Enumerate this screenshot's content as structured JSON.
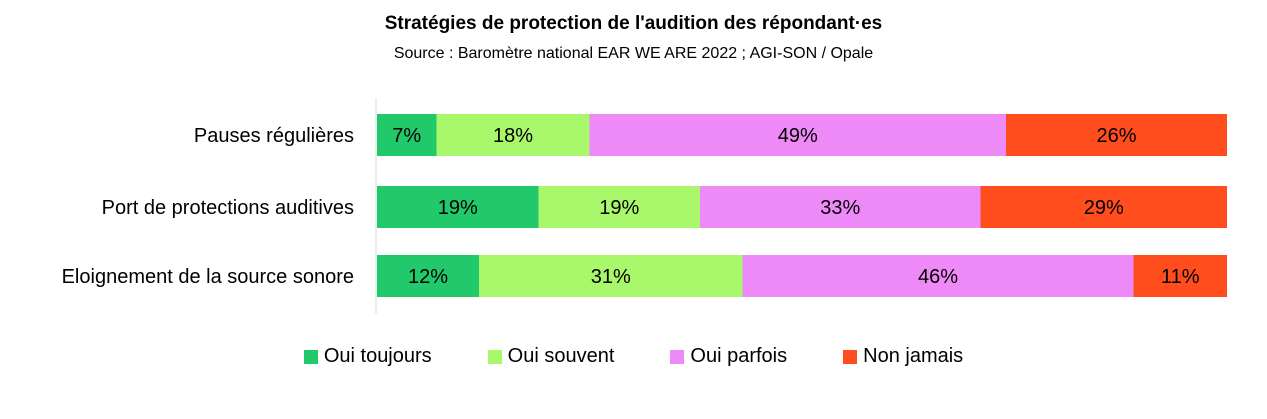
{
  "chart_data": {
    "type": "bar",
    "orientation": "horizontal",
    "stacked": true,
    "title": "Stratégies de protection de l'audition des répondant·es",
    "subtitle": "Source : Baromètre national EAR WE ARE 2022 ; AGI-SON / Opale",
    "categories": [
      "Pauses régulières",
      "Port de protections auditives",
      "Eloignement de la source sonore"
    ],
    "series": [
      {
        "name": "Oui toujours",
        "color": "#22C96B",
        "values": [
          7,
          19,
          12
        ]
      },
      {
        "name": "Oui souvent",
        "color": "#A9F76B",
        "values": [
          18,
          19,
          31
        ]
      },
      {
        "name": "Oui parfois",
        "color": "#EE8AF8",
        "values": [
          49,
          33,
          46
        ]
      },
      {
        "name": "Non jamais",
        "color": "#FF4D1E",
        "values": [
          26,
          29,
          11
        ]
      }
    ],
    "value_suffix": "%",
    "legend_position": "bottom",
    "grid": false
  }
}
